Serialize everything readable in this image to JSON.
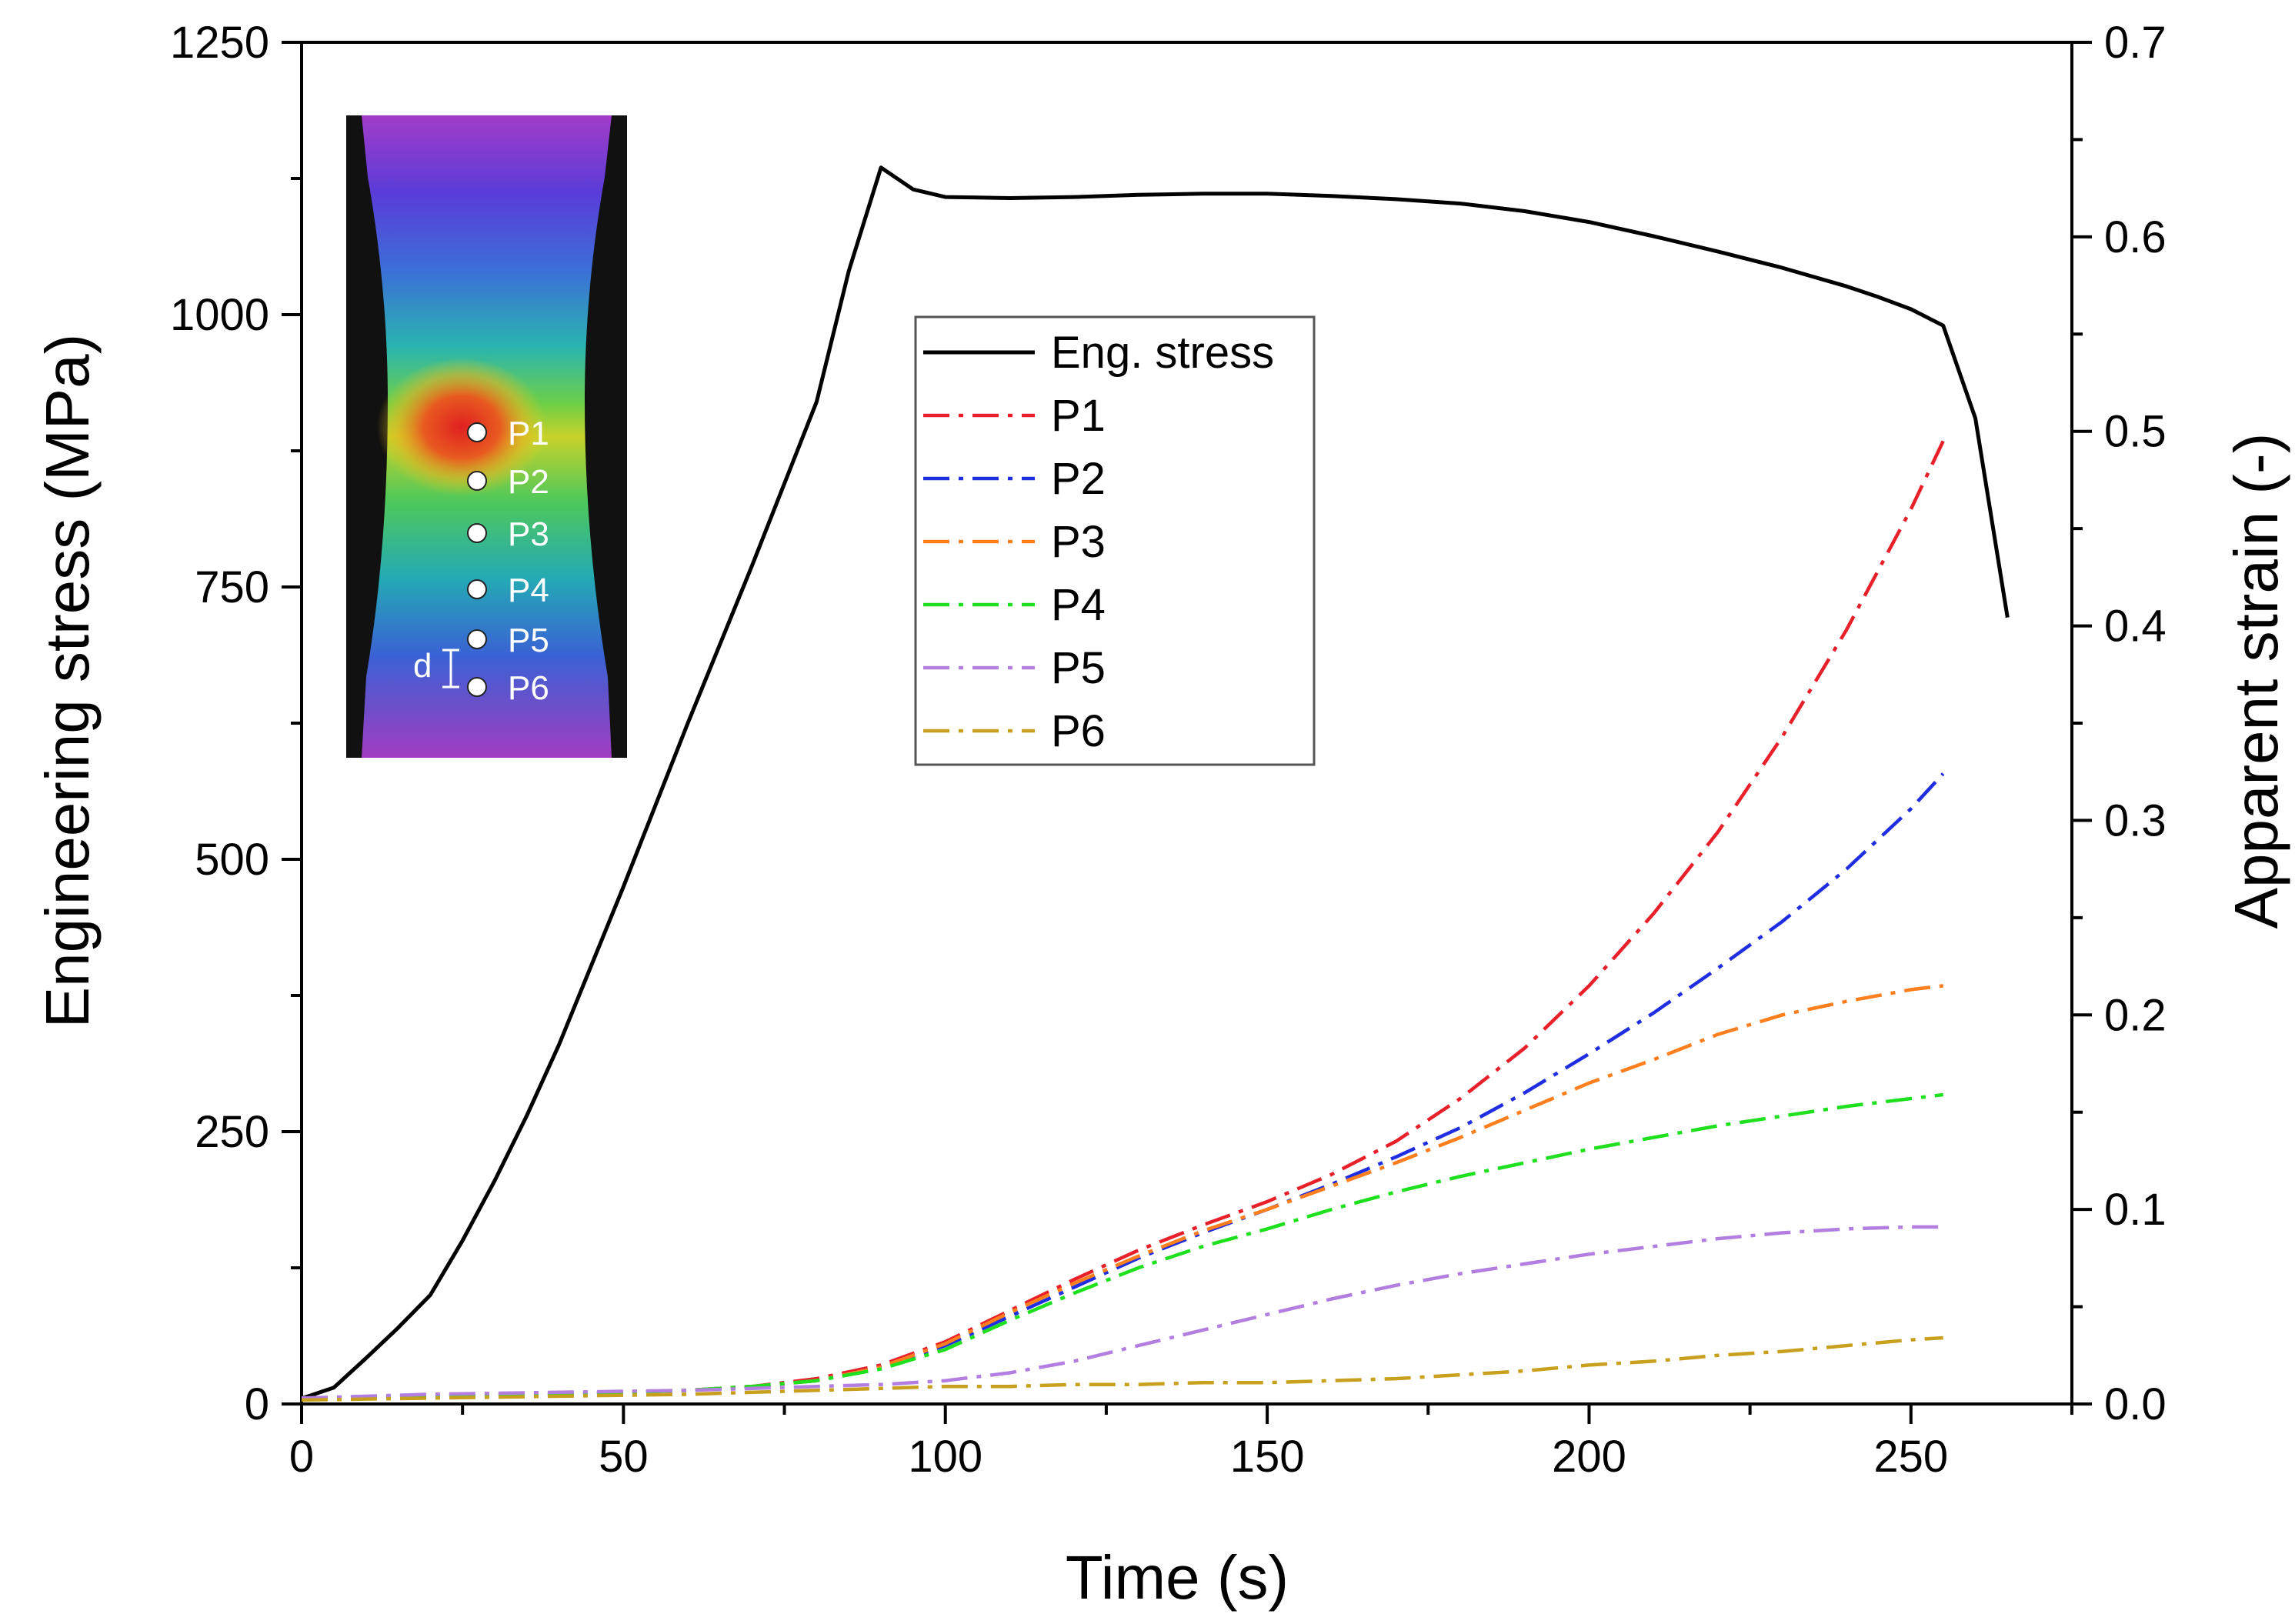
{
  "chart_data": {
    "type": "line",
    "xlabel": "Time (s)",
    "ylabel_left": "Engineering stress (MPa)",
    "ylabel_right": "Apparent strain (-)",
    "xlim": [
      0,
      275
    ],
    "ylim_left": [
      0,
      1250
    ],
    "ylim_right": [
      0,
      0.7
    ],
    "x_ticks": [
      "0",
      "50",
      "100",
      "150",
      "200",
      "250"
    ],
    "y_left_ticks": [
      "0",
      "250",
      "500",
      "750",
      "1000",
      "1250"
    ],
    "y_right_ticks": [
      "0.0",
      "0.1",
      "0.2",
      "0.3",
      "0.4",
      "0.5",
      "0.6",
      "0.7"
    ],
    "grid": false,
    "legend_position": "upper-center",
    "series": [
      {
        "name": "Eng. stress",
        "axis": "left",
        "color": "#000000",
        "dash": "solid",
        "x": [
          0,
          5,
          10,
          15,
          20,
          25,
          30,
          35,
          40,
          50,
          60,
          70,
          80,
          85,
          90,
          95,
          100,
          110,
          120,
          130,
          140,
          150,
          160,
          170,
          180,
          190,
          200,
          210,
          220,
          230,
          240,
          245,
          250,
          255,
          260,
          265
        ],
        "y": [
          5,
          15,
          42,
          70,
          100,
          150,
          205,
          265,
          330,
          475,
          625,
          770,
          920,
          1040,
          1135,
          1115,
          1108,
          1107,
          1108,
          1110,
          1111,
          1111,
          1109,
          1106,
          1102,
          1095,
          1085,
          1072,
          1058,
          1043,
          1026,
          1016,
          1005,
          990,
          905,
          722
        ]
      },
      {
        "name": "P1",
        "axis": "right",
        "color": "#e8202a",
        "dash": "dashdot",
        "x": [
          0,
          20,
          40,
          60,
          70,
          80,
          90,
          100,
          110,
          120,
          130,
          140,
          150,
          160,
          170,
          180,
          190,
          200,
          210,
          220,
          230,
          240,
          250,
          255
        ],
        "y": [
          0.003,
          0.004,
          0.005,
          0.007,
          0.009,
          0.013,
          0.02,
          0.032,
          0.048,
          0.064,
          0.079,
          0.092,
          0.104,
          0.118,
          0.135,
          0.157,
          0.183,
          0.215,
          0.252,
          0.294,
          0.343,
          0.398,
          0.46,
          0.495
        ]
      },
      {
        "name": "P2",
        "axis": "right",
        "color": "#1f2ee0",
        "dash": "dashdot",
        "x": [
          0,
          20,
          40,
          60,
          70,
          80,
          90,
          100,
          110,
          120,
          130,
          140,
          150,
          160,
          170,
          180,
          190,
          200,
          210,
          220,
          230,
          240,
          250,
          255
        ],
        "y": [
          0.003,
          0.004,
          0.005,
          0.007,
          0.009,
          0.012,
          0.019,
          0.03,
          0.045,
          0.06,
          0.075,
          0.088,
          0.1,
          0.113,
          0.127,
          0.142,
          0.16,
          0.18,
          0.201,
          0.224,
          0.248,
          0.275,
          0.306,
          0.324
        ]
      },
      {
        "name": "P3",
        "axis": "right",
        "color": "#ff7f1e",
        "dash": "dashdot",
        "x": [
          0,
          20,
          40,
          60,
          70,
          80,
          90,
          100,
          110,
          120,
          130,
          140,
          150,
          160,
          170,
          180,
          190,
          200,
          210,
          220,
          230,
          240,
          250,
          255
        ],
        "y": [
          0.003,
          0.004,
          0.005,
          0.007,
          0.009,
          0.012,
          0.019,
          0.031,
          0.047,
          0.062,
          0.076,
          0.089,
          0.1,
          0.112,
          0.124,
          0.137,
          0.151,
          0.165,
          0.177,
          0.19,
          0.2,
          0.207,
          0.213,
          0.215
        ]
      },
      {
        "name": "P4",
        "axis": "right",
        "color": "#1ee01e",
        "dash": "dashdot",
        "x": [
          0,
          20,
          40,
          60,
          70,
          80,
          90,
          100,
          110,
          120,
          130,
          140,
          150,
          160,
          170,
          180,
          190,
          200,
          210,
          220,
          230,
          240,
          250,
          255
        ],
        "y": [
          0.003,
          0.004,
          0.005,
          0.007,
          0.009,
          0.012,
          0.018,
          0.028,
          0.043,
          0.057,
          0.07,
          0.081,
          0.09,
          0.1,
          0.109,
          0.117,
          0.124,
          0.131,
          0.137,
          0.143,
          0.148,
          0.153,
          0.157,
          0.159
        ]
      },
      {
        "name": "P5",
        "axis": "right",
        "color": "#b27fe0",
        "dash": "dashdot",
        "x": [
          0,
          20,
          40,
          60,
          70,
          80,
          90,
          100,
          110,
          120,
          130,
          140,
          150,
          160,
          170,
          180,
          190,
          200,
          210,
          220,
          230,
          240,
          250,
          255
        ],
        "y": [
          0.003,
          0.005,
          0.006,
          0.007,
          0.008,
          0.009,
          0.01,
          0.012,
          0.016,
          0.022,
          0.03,
          0.038,
          0.046,
          0.054,
          0.061,
          0.067,
          0.072,
          0.077,
          0.081,
          0.085,
          0.088,
          0.09,
          0.091,
          0.091
        ]
      },
      {
        "name": "P6",
        "axis": "right",
        "color": "#c8a01e",
        "dash": "dashdot",
        "x": [
          0,
          20,
          40,
          60,
          70,
          80,
          90,
          100,
          110,
          120,
          130,
          140,
          150,
          160,
          170,
          180,
          190,
          200,
          210,
          220,
          230,
          240,
          250,
          255
        ],
        "y": [
          0.002,
          0.003,
          0.004,
          0.005,
          0.006,
          0.007,
          0.008,
          0.009,
          0.009,
          0.01,
          0.01,
          0.011,
          0.011,
          0.012,
          0.013,
          0.015,
          0.017,
          0.02,
          0.022,
          0.025,
          0.027,
          0.03,
          0.033,
          0.034
        ]
      }
    ],
    "inset": {
      "description_labels": [
        "P1",
        "P2",
        "P3",
        "P4",
        "P5",
        "P6"
      ],
      "spacing_label": "d"
    }
  }
}
